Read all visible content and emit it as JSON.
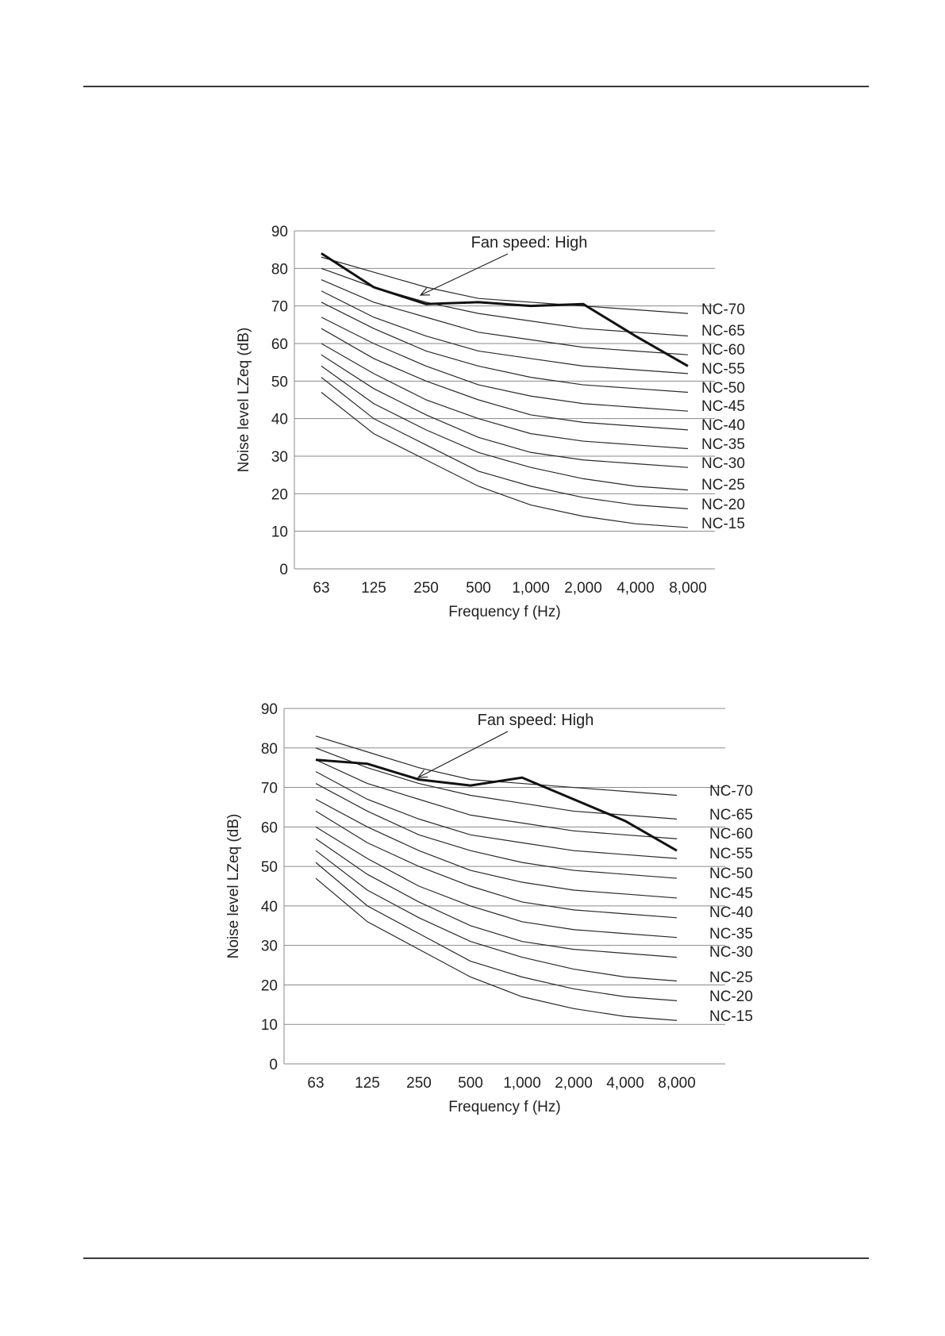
{
  "page": {
    "header_rule": true,
    "footer_rule": true
  },
  "nc_curves": [
    {
      "label": "NC-70",
      "values": [
        83,
        79,
        75,
        72,
        71,
        70,
        69,
        68
      ]
    },
    {
      "label": "NC-65",
      "values": [
        80,
        75,
        71,
        68,
        66,
        64,
        63,
        62
      ]
    },
    {
      "label": "NC-60",
      "values": [
        77,
        71,
        67,
        63,
        61,
        59,
        58,
        57
      ]
    },
    {
      "label": "NC-55",
      "values": [
        74,
        67,
        62,
        58,
        56,
        54,
        53,
        52
      ]
    },
    {
      "label": "NC-50",
      "values": [
        71,
        64,
        58,
        54,
        51,
        49,
        48,
        47
      ]
    },
    {
      "label": "NC-45",
      "values": [
        67,
        60,
        54,
        49,
        46,
        44,
        43,
        42
      ]
    },
    {
      "label": "NC-40",
      "values": [
        64,
        56,
        50,
        45,
        41,
        39,
        38,
        37
      ]
    },
    {
      "label": "NC-35",
      "values": [
        60,
        52,
        45,
        40,
        36,
        34,
        33,
        32
      ]
    },
    {
      "label": "NC-30",
      "values": [
        57,
        48,
        41,
        35,
        31,
        29,
        28,
        27
      ]
    },
    {
      "label": "NC-25",
      "values": [
        54,
        44,
        37,
        31,
        27,
        24,
        22,
        21
      ]
    },
    {
      "label": "NC-20",
      "values": [
        51,
        40,
        33,
        26,
        22,
        19,
        17,
        16
      ]
    },
    {
      "label": "NC-15",
      "values": [
        47,
        36,
        29,
        22,
        17,
        14,
        12,
        11
      ]
    }
  ],
  "chart_data": [
    {
      "type": "line",
      "categories": [
        "63",
        "125",
        "250",
        "500",
        "1,000",
        "2,000",
        "4,000",
        "8,000"
      ],
      "xlabel": "Frequency f (Hz)",
      "ylabel": "Noise level LZeq (dB)",
      "ylim": [
        0,
        90
      ],
      "yticks": [
        "0",
        "10",
        "20",
        "30",
        "40",
        "50",
        "60",
        "70",
        "80",
        "90"
      ],
      "grid": true,
      "measured": {
        "annotation": "Fan speed: High",
        "values": [
          84,
          75,
          70.5,
          71,
          70,
          70.5,
          62,
          54
        ]
      }
    },
    {
      "type": "line",
      "categories": [
        "63",
        "125",
        "250",
        "500",
        "1,000",
        "2,000",
        "4,000",
        "8,000"
      ],
      "xlabel": "Frequency f (Hz)",
      "ylabel": "Noise level LZeq (dB)",
      "ylim": [
        0,
        90
      ],
      "yticks": [
        "0",
        "10",
        "20",
        "30",
        "40",
        "50",
        "60",
        "70",
        "80",
        "90"
      ],
      "grid": true,
      "measured": {
        "annotation": "Fan speed: High",
        "values": [
          77,
          76,
          72,
          70.5,
          72.5,
          67,
          61.5,
          54
        ]
      }
    }
  ]
}
